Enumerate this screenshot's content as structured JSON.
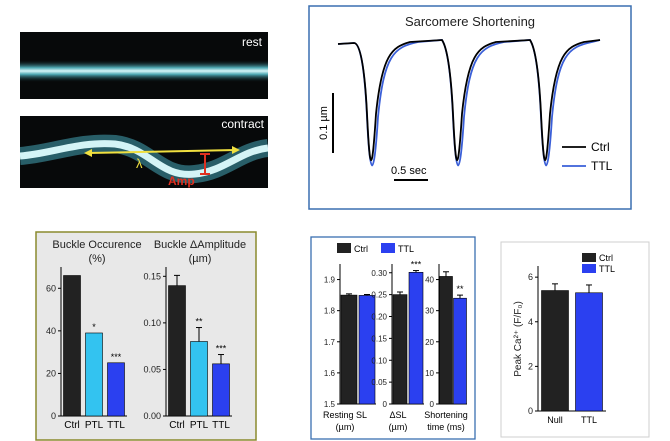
{
  "colors": {
    "ctrl_line": "#000000",
    "ttl_line": "#3a5fd8",
    "ctrl_bar": "#222222",
    "ptl_bar": "#33c3f0",
    "ttl_bar": "#2b40f0",
    "panel_border": "#8a8a2e",
    "panel_bg": "#e8e8e8",
    "trace_border": "#3a6fb0",
    "fiber": "#bfeaf0",
    "annot_yellow": "#f0e040",
    "annot_red": "#e03020"
  },
  "images": {
    "rest_label": "rest",
    "contract_label": "contract",
    "lambda_label": "λ",
    "amp_label": "Amp"
  },
  "trace": {
    "title": "Sarcomere Shortening",
    "scale_y": "0.1 µm",
    "scale_x": "0.5 sec",
    "legend": [
      "Ctrl",
      "TTL"
    ]
  },
  "buckle": {
    "occ_title": "Buckle Occurence",
    "occ_unit": "(%)",
    "amp_title": "Buckle ΔAmplitude",
    "amp_unit": "(µm)",
    "categories": [
      "Ctrl",
      "PTL",
      "TTL"
    ]
  },
  "sl": {
    "legend": [
      "Ctrl",
      "TTL"
    ],
    "xlabels": [
      [
        "Resting SL",
        "(µm)"
      ],
      [
        "ΔSL",
        "(µm)"
      ],
      [
        "Shortening",
        "time (ms)"
      ]
    ]
  },
  "ca": {
    "ylabel": "Peak Ca²⁺ (F/F₀)",
    "legend": [
      "Ctrl",
      "TTL"
    ],
    "categories": [
      "Null",
      "TTL"
    ]
  },
  "chart_data": [
    {
      "type": "line",
      "title": "Sarcomere Shortening",
      "series": [
        {
          "name": "Ctrl",
          "baseline_um": 0,
          "peak_shortening_um": -0.11
        },
        {
          "name": "TTL",
          "baseline_um": 0,
          "peak_shortening_um": -0.115
        }
      ],
      "beats": 3,
      "xlabel": "0.5 sec",
      "ylabel": "0.1 µm"
    },
    {
      "type": "bar",
      "title": "Buckle Occurence",
      "ylabel": "(%)",
      "categories": [
        "Ctrl",
        "PTL",
        "TTL"
      ],
      "values": [
        66,
        39,
        25
      ],
      "errors": [
        0,
        0,
        0
      ],
      "significance": [
        "",
        "*",
        "***"
      ],
      "ylim": [
        0,
        70
      ],
      "yticks": [
        0,
        20,
        40,
        60
      ],
      "ytick_labels": [
        "0",
        "20",
        "40",
        "60"
      ]
    },
    {
      "type": "bar",
      "title": "Buckle ΔAmplitude",
      "ylabel": "(µm)",
      "categories": [
        "Ctrl",
        "PTL",
        "TTL"
      ],
      "values": [
        0.14,
        0.08,
        0.056
      ],
      "errors": [
        0.011,
        0.015,
        0.01
      ],
      "significance": [
        "",
        "**",
        "***"
      ],
      "ylim": [
        0,
        0.16
      ],
      "yticks": [
        0,
        0.05,
        0.1,
        0.15
      ],
      "ytick_labels": [
        "0.00",
        "0.05",
        "0.10",
        "0.15"
      ]
    },
    {
      "type": "bar",
      "title": "Resting SL",
      "ylabel": "(µm)",
      "categories": [
        "Ctrl",
        "TTL"
      ],
      "values": [
        1.85,
        1.849
      ],
      "errors": [
        0.004,
        0.003
      ],
      "significance": [
        "",
        ""
      ],
      "ylim": [
        1.5,
        1.95
      ],
      "yticks": [
        1.5,
        1.6,
        1.7,
        1.8,
        1.9
      ],
      "ytick_labels": [
        "1.5",
        "1.6",
        "1.7",
        "1.8",
        "1.9"
      ]
    },
    {
      "type": "bar",
      "title": "ΔSL",
      "ylabel": "(µm)",
      "categories": [
        "Ctrl",
        "TTL"
      ],
      "values": [
        0.25,
        0.301
      ],
      "errors": [
        0.006,
        0.004
      ],
      "significance": [
        "",
        "***"
      ],
      "ylim": [
        0,
        0.32
      ],
      "yticks": [
        0,
        0.05,
        0.1,
        0.15,
        0.2,
        0.25,
        0.3
      ],
      "ytick_labels": [
        "0",
        "0.05",
        "0.10",
        "0.15",
        "0.20",
        "0.25",
        "0.30"
      ]
    },
    {
      "type": "bar",
      "title": "Shortening time",
      "ylabel": "(ms)",
      "categories": [
        "Ctrl",
        "TTL"
      ],
      "values": [
        41,
        34
      ],
      "errors": [
        1.5,
        1
      ],
      "significance": [
        "",
        "**"
      ],
      "ylim": [
        0,
        45
      ],
      "yticks": [
        0,
        10,
        20,
        30,
        40
      ],
      "ytick_labels": [
        "0",
        "10",
        "20",
        "30",
        "40"
      ]
    },
    {
      "type": "bar",
      "title": "Peak Ca2+",
      "ylabel": "Peak Ca²⁺ (F/F₀)",
      "categories": [
        "Null",
        "TTL"
      ],
      "values": [
        5.4,
        5.3
      ],
      "errors": [
        0.3,
        0.35
      ],
      "significance": [
        "",
        ""
      ],
      "ylim": [
        0,
        6.5
      ],
      "yticks": [
        0,
        2,
        4,
        6
      ],
      "ytick_labels": [
        "0",
        "2",
        "4",
        "6"
      ]
    }
  ]
}
